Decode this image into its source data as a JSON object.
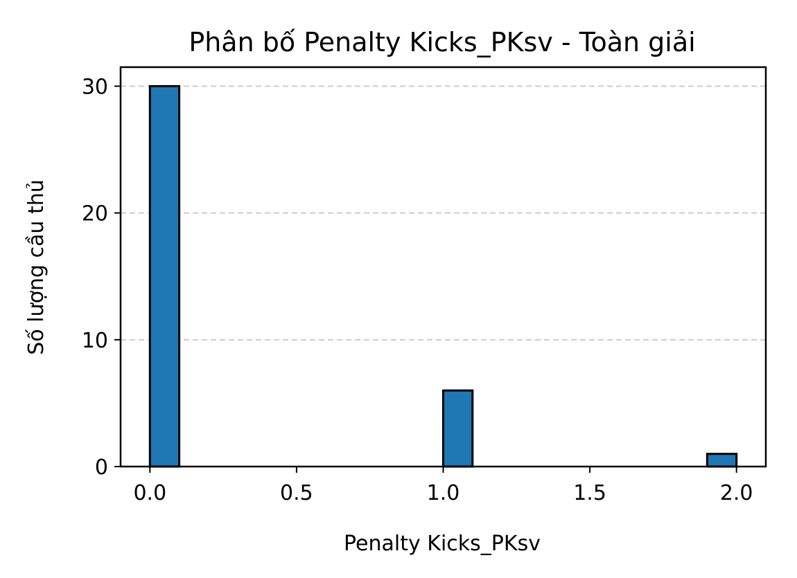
{
  "chart_data": {
    "type": "bar",
    "title": "Phân bố Penalty Kicks_PKsv - Toàn giải",
    "xlabel": "Penalty Kicks_PKsv",
    "ylabel": "Số lượng cầu thủ",
    "xlim": [
      -0.1,
      2.1
    ],
    "ylim": [
      0,
      31.5
    ],
    "xticks": [
      0.0,
      0.5,
      1.0,
      1.5,
      2.0
    ],
    "xtick_labels": [
      "0.0",
      "0.5",
      "1.0",
      "1.5",
      "2.0"
    ],
    "yticks": [
      0,
      10,
      20,
      30
    ],
    "ytick_labels": [
      "0",
      "10",
      "20",
      "30"
    ],
    "bin_width": 0.1,
    "bins": [
      {
        "start": 0.0,
        "end": 0.1,
        "count": 30
      },
      {
        "start": 1.0,
        "end": 1.1,
        "count": 6
      },
      {
        "start": 1.9,
        "end": 2.0,
        "count": 1
      }
    ],
    "grid": "y-dashed",
    "bar_color": "#1f77b4",
    "edge_color": "#000000",
    "grid_color": "#cccccc"
  }
}
